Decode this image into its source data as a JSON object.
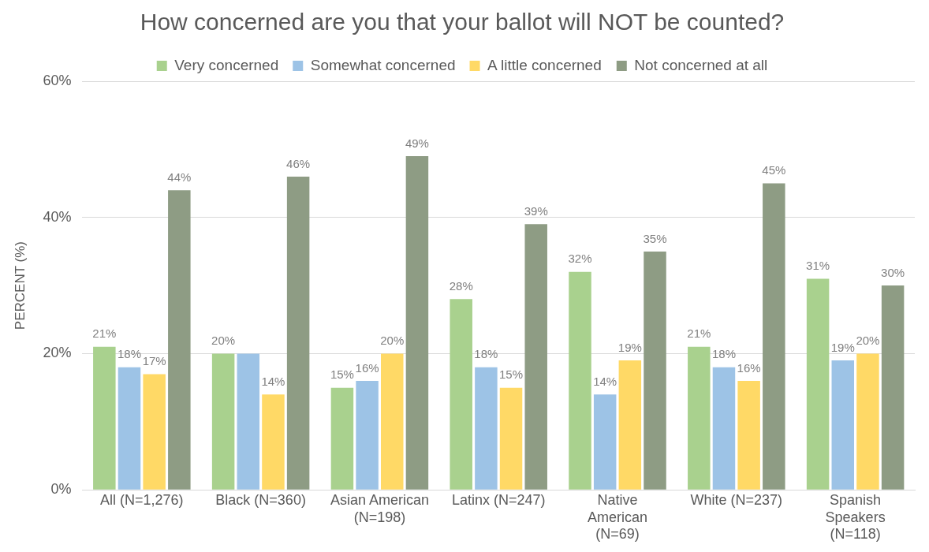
{
  "chart_data": {
    "type": "bar",
    "title": "How concerned are you that your ballot will NOT be counted?",
    "ylabel": "PERCENT (%)",
    "categories": [
      "All (N=1,276)",
      "Black (N=360)",
      "Asian American (N=198)",
      "Latinx (N=247)",
      "Native American (N=69)",
      "White (N=237)",
      "Spanish Speakers (N=118)"
    ],
    "series": [
      {
        "name": "Very concerned",
        "color": "#a9d18e",
        "values": [
          21,
          20,
          15,
          28,
          32,
          21,
          31
        ],
        "value_labels": [
          "21%",
          "20%",
          "15%",
          "28%",
          "32%",
          "21%",
          "31%"
        ]
      },
      {
        "name": "Somewhat concerned",
        "color": "#9dc3e6",
        "values": [
          18,
          20,
          16,
          18,
          14,
          18,
          19
        ],
        "value_labels": [
          "18%",
          null,
          "16%",
          "18%",
          "14%",
          "18%",
          "19%"
        ]
      },
      {
        "name": "A little concerned",
        "color": "#ffd966",
        "values": [
          17,
          14,
          20,
          15,
          19,
          16,
          20
        ],
        "value_labels": [
          "17%",
          "14%",
          "20%",
          "15%",
          "19%",
          "16%",
          "20%"
        ]
      },
      {
        "name": "Not concerned at all",
        "color": "#8e9c84",
        "values": [
          44,
          46,
          49,
          39,
          35,
          45,
          30
        ],
        "value_labels": [
          "44%",
          "46%",
          "49%",
          "39%",
          "35%",
          "45%",
          "30%"
        ]
      }
    ],
    "ylim": [
      0,
      60
    ],
    "yticks": [
      {
        "value": 0,
        "label": "0%"
      },
      {
        "value": 20,
        "label": "20%"
      },
      {
        "value": 40,
        "label": "40%"
      },
      {
        "value": 60,
        "label": "60%"
      }
    ],
    "grid": "y",
    "legend": "top"
  }
}
